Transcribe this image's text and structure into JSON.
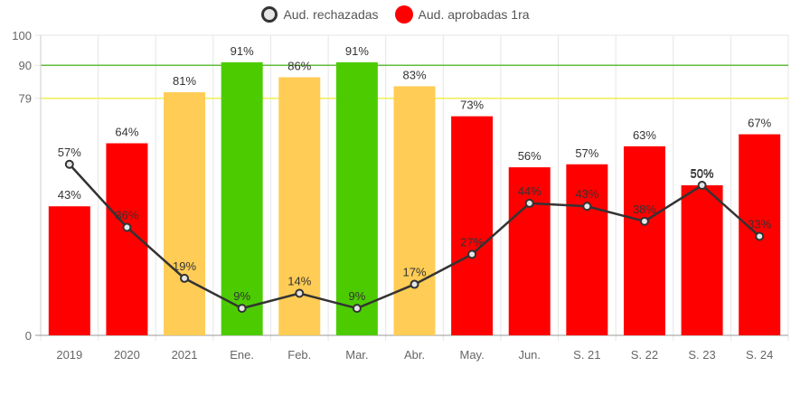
{
  "legend": {
    "line_label": "Aud. rechazadas",
    "bar_label": "Aud. aprobadas 1ra"
  },
  "chart_data": {
    "type": "bar",
    "categories": [
      "2019",
      "2020",
      "2021",
      "Ene.",
      "Feb.",
      "Mar.",
      "Abr.",
      "May.",
      "Jun.",
      "S. 21",
      "S. 22",
      "S. 23",
      "S. 24"
    ],
    "series": [
      {
        "name": "Aud. aprobadas 1ra",
        "type": "bar",
        "values": [
          43,
          64,
          81,
          91,
          86,
          91,
          83,
          73,
          56,
          57,
          63,
          50,
          67
        ],
        "labels": [
          "43%",
          "64%",
          "81%",
          "91%",
          "86%",
          "91%",
          "83%",
          "73%",
          "56%",
          "57%",
          "63%",
          "50%",
          "67%"
        ],
        "colors": [
          "#ff0000",
          "#ff0000",
          "#ffcc55",
          "#4ccc00",
          "#ffcc55",
          "#4ccc00",
          "#ffcc55",
          "#ff0000",
          "#ff0000",
          "#ff0000",
          "#ff0000",
          "#ff0000",
          "#ff0000"
        ]
      },
      {
        "name": "Aud. rechazadas",
        "type": "line",
        "values": [
          57,
          36,
          19,
          9,
          14,
          9,
          17,
          27,
          44,
          43,
          38,
          50,
          33
        ],
        "labels": [
          "57%",
          "36%",
          "19%",
          "9%",
          "14%",
          "9%",
          "17%",
          "27%",
          "44%",
          "43%",
          "38%",
          "50%",
          "33%"
        ],
        "color": "#333333"
      }
    ],
    "y_ticks": [
      "0",
      "79",
      "90",
      "100"
    ],
    "ylim": [
      0,
      100
    ],
    "threshold_lines": [
      {
        "value": 90,
        "color": "#33aa00"
      },
      {
        "value": 79,
        "color": "#eeee33"
      }
    ],
    "grid": true,
    "legend_position": "top"
  }
}
